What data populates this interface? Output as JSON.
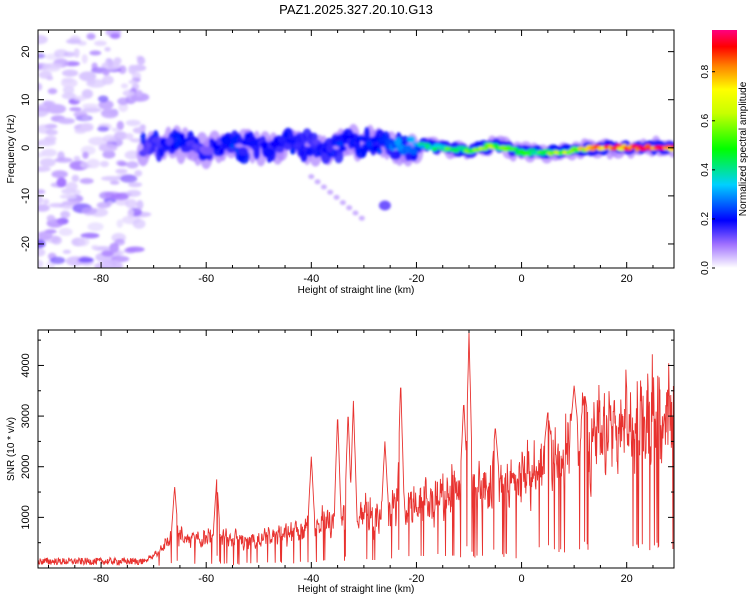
{
  "title": "PAZ1.2025.327.20.10.G13",
  "chart_data": [
    {
      "type": "heatmap",
      "xlabel": "Height of straight line (km)",
      "ylabel": "Frequency (Hz)",
      "xlim": [
        -92,
        29
      ],
      "ylim": [
        -25,
        24.5
      ],
      "x_ticks": [
        -80,
        -60,
        -40,
        -20,
        0,
        20
      ],
      "y_ticks": [
        -20,
        -10,
        0,
        10,
        20
      ],
      "x_tick_labels": [
        "-80",
        "-60",
        "-40",
        "-20",
        "0",
        "20"
      ],
      "y_tick_labels": [
        "-20",
        "-10",
        "0",
        "10",
        "20"
      ],
      "noise_region_x": [
        -92,
        -72
      ],
      "signal_track": {
        "x": [
          -72,
          -65,
          -60,
          -55,
          -50,
          -45,
          -40,
          -35,
          -30,
          -25,
          -20,
          -15,
          -10,
          -5,
          0,
          5,
          10,
          15,
          20,
          25,
          29
        ],
        "freq": [
          0,
          1,
          0,
          0.5,
          0,
          0.5,
          0.5,
          0,
          1,
          0.5,
          0.5,
          0,
          -0.5,
          0.5,
          -1,
          -1,
          -0.5,
          0,
          0,
          0,
          0
        ],
        "amplitude": [
          0.15,
          0.2,
          0.15,
          0.22,
          0.18,
          0.2,
          0.18,
          0.22,
          0.2,
          0.25,
          0.35,
          0.5,
          0.55,
          0.6,
          0.45,
          0.55,
          0.65,
          0.85,
          0.95,
          0.9,
          0.85
        ]
      },
      "colorbar": {
        "label": "Normalized spectral amplitude",
        "range": [
          0.0,
          0.97
        ],
        "ticks": [
          0.0,
          0.2,
          0.4,
          0.6,
          0.8
        ],
        "tick_labels": [
          "0.0",
          "0.2",
          "0.4",
          "0.6",
          "0.8"
        ]
      }
    },
    {
      "type": "line",
      "xlabel": "Height of straight line (km)",
      "ylabel": "SNR (10 * v/v)",
      "xlim": [
        -92,
        29
      ],
      "ylim": [
        0,
        4700
      ],
      "x_ticks": [
        -80,
        -60,
        -40,
        -20,
        0,
        20
      ],
      "y_ticks": [
        1000,
        2000,
        3000,
        4000
      ],
      "x_tick_labels": [
        "-80",
        "-60",
        "-40",
        "-20",
        "0",
        "20"
      ],
      "y_tick_labels": [
        "1000",
        "2000",
        "3000",
        "4000"
      ],
      "color": "#e8322f",
      "envelope": {
        "x": [
          -92,
          -80,
          -72,
          -70,
          -68,
          -66,
          -62,
          -58,
          -55,
          -52,
          -48,
          -44,
          -40,
          -35,
          -32,
          -30,
          -27,
          -24,
          -22,
          -20,
          -15,
          -12,
          -10,
          -8,
          -5,
          -2,
          0,
          3,
          6,
          10,
          15,
          20,
          25,
          29
        ],
        "y": [
          120,
          120,
          160,
          300,
          500,
          800,
          700,
          800,
          700,
          650,
          800,
          900,
          1000,
          1200,
          1300,
          1400,
          1200,
          1500,
          1500,
          1500,
          1800,
          1900,
          2000,
          1900,
          2000,
          2100,
          2300,
          2400,
          2600,
          2900,
          3200,
          3500,
          3700,
          3800
        ]
      },
      "peaks": {
        "x": [
          -66,
          -58,
          -40,
          -35,
          -33,
          -32,
          -26,
          -23,
          -11,
          -10,
          -5,
          5,
          10,
          12
        ],
        "y": [
          1600,
          1750,
          2200,
          3050,
          3100,
          3300,
          2500,
          3700,
          3300,
          4650,
          2800,
          3100,
          3600,
          3450
        ]
      }
    }
  ]
}
